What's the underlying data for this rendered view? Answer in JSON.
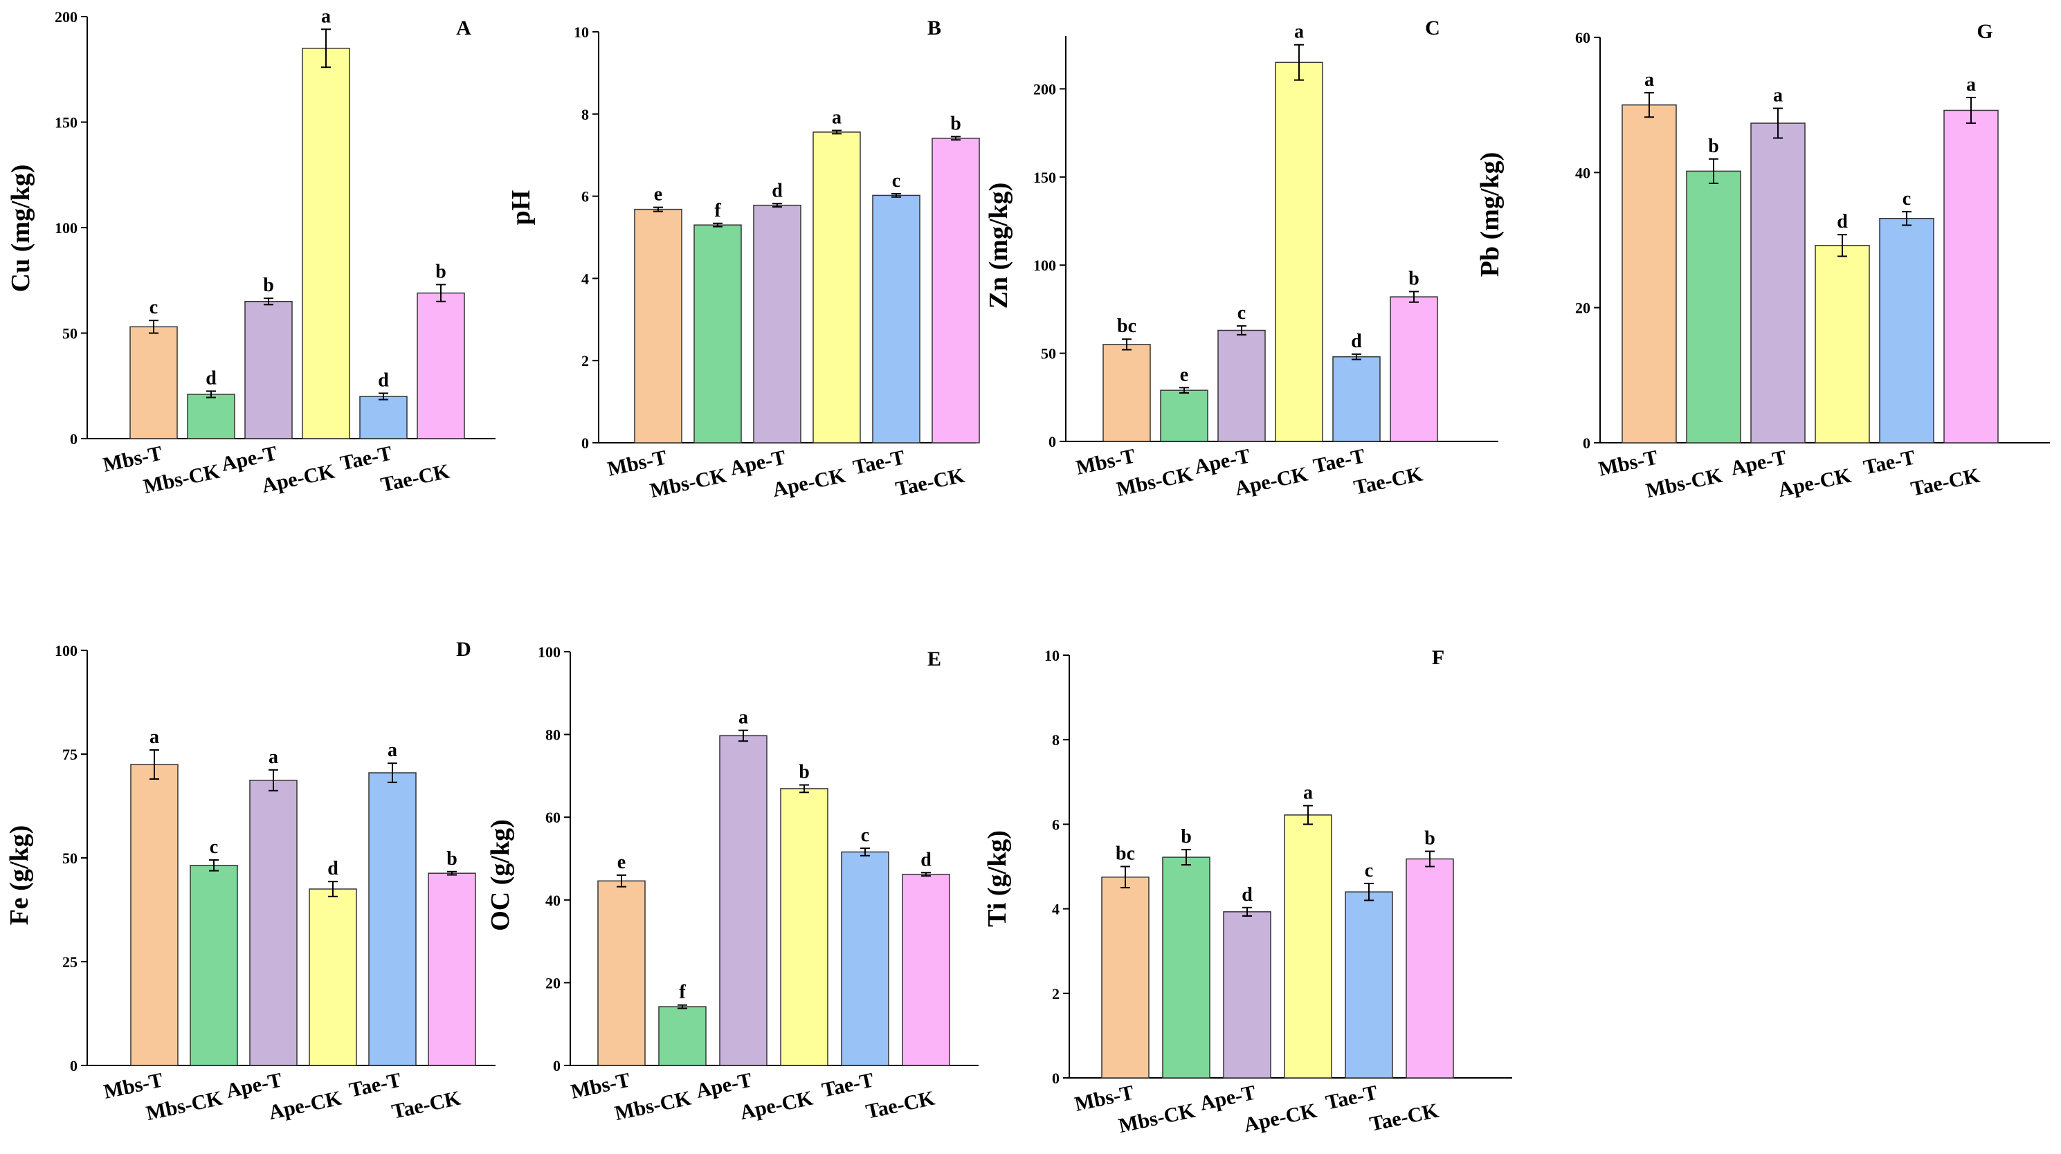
{
  "chart_data": [
    {
      "panel": "A",
      "type": "bar",
      "ylabel": "Cu (mg/kg)",
      "ylim": [
        0,
        200
      ],
      "yticks": [
        0,
        50,
        100,
        150,
        200
      ],
      "categories": [
        "Mbs-T",
        "Mbs-CK",
        "Ape-T",
        "Ape-CK",
        "Tae-T",
        "Tae-CK"
      ],
      "values": [
        53,
        21,
        65,
        185,
        20,
        69
      ],
      "errors": [
        3,
        1.5,
        1.5,
        9,
        1.5,
        4
      ],
      "letters": [
        "c",
        "d",
        "b",
        "a",
        "d",
        "b"
      ]
    },
    {
      "panel": "B",
      "type": "bar",
      "ylabel": "pH",
      "ylim": [
        0,
        10
      ],
      "yticks": [
        0,
        2,
        4,
        6,
        8,
        10
      ],
      "categories": [
        "Mbs-T",
        "Mbs-CK",
        "Ape-T",
        "Ape-CK",
        "Tae-T",
        "Tae-CK"
      ],
      "values": [
        5.68,
        5.3,
        5.78,
        7.56,
        6.02,
        7.41
      ],
      "errors": [
        0.05,
        0.04,
        0.04,
        0.04,
        0.04,
        0.04
      ],
      "letters": [
        "e",
        "f",
        "d",
        "a",
        "c",
        "b"
      ]
    },
    {
      "panel": "C",
      "type": "bar",
      "ylabel": "Zn (mg/kg)",
      "ylim": [
        0,
        230
      ],
      "yticks": [
        0,
        50,
        100,
        150,
        200
      ],
      "categories": [
        "Mbs-T",
        "Mbs-CK",
        "Ape-T",
        "Ape-CK",
        "Tae-T",
        "Tae-CK"
      ],
      "values": [
        55,
        29,
        63,
        215,
        48,
        82
      ],
      "errors": [
        3,
        1.5,
        2.5,
        10,
        1.5,
        3
      ],
      "letters": [
        "bc",
        "e",
        "c",
        "a",
        "d",
        "b"
      ]
    },
    {
      "panel": "G",
      "type": "bar",
      "ylabel": "Pb (mg/kg)",
      "ylim": [
        0,
        60
      ],
      "yticks": [
        0,
        20,
        40,
        60
      ],
      "categories": [
        "Mbs-T",
        "Mbs-CK",
        "Ape-T",
        "Ape-CK",
        "Tae-T",
        "Tae-CK"
      ],
      "values": [
        50,
        40.2,
        47.3,
        29.2,
        33.2,
        49.2
      ],
      "errors": [
        1.8,
        1.8,
        2.2,
        1.6,
        1,
        1.9
      ],
      "letters": [
        "a",
        "b",
        "a",
        "d",
        "c",
        "a"
      ]
    },
    {
      "panel": "D",
      "type": "bar",
      "ylabel": "Fe (g/kg)",
      "ylim": [
        0,
        100
      ],
      "yticks": [
        0,
        25,
        50,
        75,
        100
      ],
      "categories": [
        "Mbs-T",
        "Mbs-CK",
        "Ape-T",
        "Ape-CK",
        "Tae-T",
        "Tae-CK"
      ],
      "values": [
        72.5,
        48.2,
        68.7,
        42.5,
        70.5,
        46.3
      ],
      "errors": [
        3.5,
        1.3,
        2.5,
        1.8,
        2.3,
        0.4
      ],
      "letters": [
        "a",
        "c",
        "a",
        "d",
        "a",
        "b"
      ]
    },
    {
      "panel": "E",
      "type": "bar",
      "ylabel": "OC (g/kg)",
      "ylim": [
        0,
        100
      ],
      "yticks": [
        0,
        20,
        40,
        60,
        80,
        100
      ],
      "categories": [
        "Mbs-T",
        "Mbs-CK",
        "Ape-T",
        "Ape-CK",
        "Tae-T",
        "Tae-CK"
      ],
      "values": [
        44.6,
        14.2,
        79.7,
        66.9,
        51.6,
        46.2
      ],
      "errors": [
        1.4,
        0.4,
        1.3,
        0.9,
        0.9,
        0.4
      ],
      "letters": [
        "e",
        "f",
        "a",
        "b",
        "c",
        "d"
      ]
    },
    {
      "panel": "F",
      "type": "bar",
      "ylabel": "Ti (g/kg)",
      "ylim": [
        0,
        10
      ],
      "yticks": [
        0,
        2,
        4,
        6,
        8,
        10
      ],
      "categories": [
        "Mbs-T",
        "Mbs-CK",
        "Ape-T",
        "Ape-CK",
        "Tae-T",
        "Tae-CK"
      ],
      "values": [
        4.75,
        5.22,
        3.93,
        6.22,
        4.4,
        5.18
      ],
      "errors": [
        0.25,
        0.18,
        0.1,
        0.22,
        0.2,
        0.18
      ],
      "letters": [
        "bc",
        "b",
        "d",
        "a",
        "c",
        "b"
      ]
    }
  ],
  "colors": {
    "bar_fills": [
      "#F9C89A",
      "#7ED89A",
      "#C8B3DA",
      "#FFFF99",
      "#99C2F7",
      "#FBB4F8"
    ],
    "bar_stroke": "#333333",
    "axis": "#000000"
  }
}
